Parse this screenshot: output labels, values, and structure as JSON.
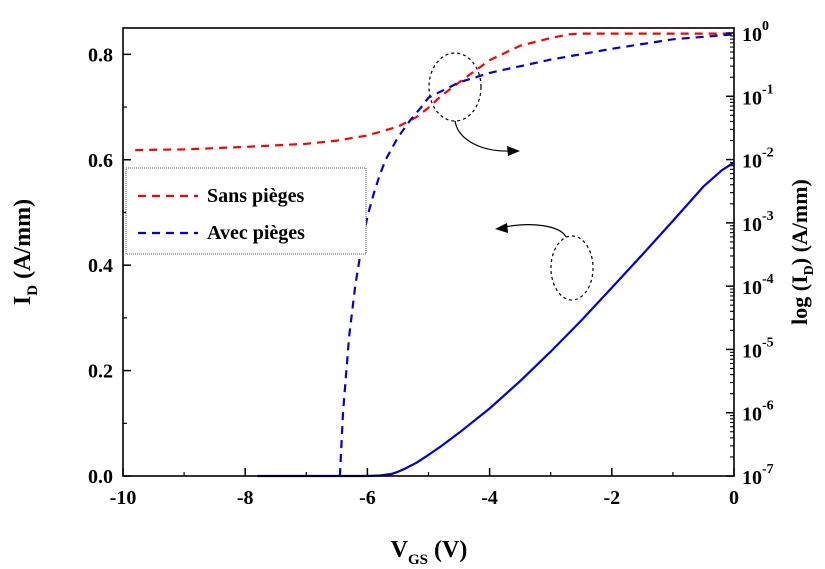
{
  "chart_data": {
    "type": "line",
    "title": "",
    "xlabel": {
      "main": "V",
      "sub": "GS",
      "unit": " (V)"
    },
    "ylabel_left": {
      "main": "I",
      "sub": "D",
      "unit": " (A/mm)"
    },
    "ylabel_right": {
      "pre": "log (I",
      "sub": "D",
      "post": ") (A/mm)"
    },
    "xlim": [
      -10,
      0
    ],
    "ylim_left": [
      0,
      0.85
    ],
    "ylim_right_log10": [
      -7,
      0
    ],
    "x_ticks": [
      "-10",
      "-8",
      "-6",
      "-4",
      "-2",
      "0"
    ],
    "y_left_ticks": [
      "0.0",
      "0.2",
      "0.4",
      "0.6",
      "0.8"
    ],
    "y_right_ticks": [
      {
        "base": "10",
        "exp": "0"
      },
      {
        "base": "10",
        "exp": "-1"
      },
      {
        "base": "10",
        "exp": "-2"
      },
      {
        "base": "10",
        "exp": "-3"
      },
      {
        "base": "10",
        "exp": "-4"
      },
      {
        "base": "10",
        "exp": "-5"
      },
      {
        "base": "10",
        "exp": "-6"
      },
      {
        "base": "10",
        "exp": "-7"
      }
    ],
    "legend_placement": "left",
    "grid": false,
    "series": [
      {
        "name": "Sans pièges",
        "axis": "right-log",
        "style": "dashed",
        "color": "#ff0000",
        "x": [
          -9.8,
          -9.0,
          -8.0,
          -7.0,
          -6.5,
          -6.0,
          -5.5,
          -5.2,
          -5.0,
          -4.8,
          -4.5,
          -4.2,
          -4.0,
          -3.5,
          -3.0,
          -2.7,
          -2.5,
          -2.0,
          -1.0,
          0.0
        ],
        "y_log10": [
          -1.85,
          -1.84,
          -1.8,
          -1.75,
          -1.7,
          -1.62,
          -1.48,
          -1.33,
          -1.18,
          -1.0,
          -0.78,
          -0.57,
          -0.43,
          -0.2,
          -0.08,
          -0.02,
          -0.01,
          -0.01,
          -0.01,
          -0.01
        ]
      },
      {
        "name": "Avec pièges",
        "axis": "right-log",
        "style": "dashed",
        "color": "#0000dd",
        "x": [
          -6.45,
          -6.4,
          -6.3,
          -6.2,
          -6.1,
          -6.0,
          -5.9,
          -5.8,
          -5.7,
          -5.5,
          -5.3,
          -5.1,
          -5.0,
          -4.5,
          -4.0,
          -3.0,
          -2.0,
          -1.0,
          0.0
        ],
        "y_log10": [
          -7.0,
          -6.0,
          -4.8,
          -4.0,
          -3.4,
          -2.9,
          -2.55,
          -2.25,
          -2.0,
          -1.65,
          -1.38,
          -1.15,
          -1.02,
          -0.78,
          -0.63,
          -0.42,
          -0.25,
          -0.1,
          -0.02
        ]
      },
      {
        "name": "",
        "axis": "left-linear",
        "style": "solid",
        "color": "#0000dd",
        "x": [
          -7.8,
          -6.5,
          -6.0,
          -5.8,
          -5.6,
          -5.5,
          -5.4,
          -5.2,
          -5.0,
          -4.8,
          -4.5,
          -4.0,
          -3.5,
          -3.0,
          -2.5,
          -2.0,
          -1.5,
          -1.0,
          -0.5,
          -0.2,
          0.0
        ],
        "y": [
          0.0,
          0.0,
          0.0,
          0.001,
          0.004,
          0.008,
          0.013,
          0.025,
          0.04,
          0.056,
          0.082,
          0.128,
          0.18,
          0.236,
          0.295,
          0.357,
          0.42,
          0.484,
          0.549,
          0.58,
          0.595
        ]
      }
    ]
  }
}
